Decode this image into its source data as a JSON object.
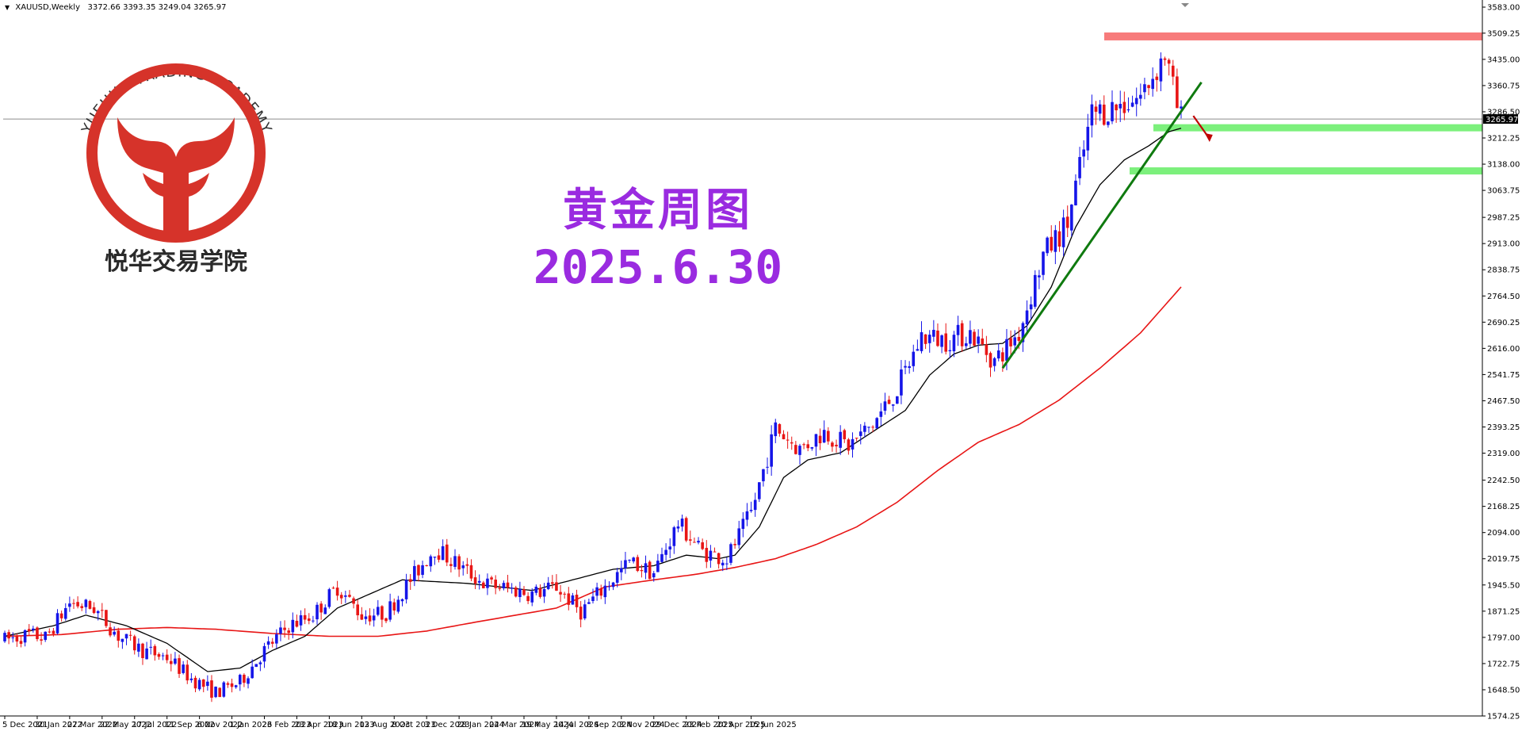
{
  "header": {
    "symbol": "XAUUSD,Weekly",
    "ohlc": "3372.66 3393.35 3249.04 3265.97"
  },
  "logo": {
    "arc_text": "YUEHUA TRADING ACADEMY",
    "cn_text": "悦华交易学院",
    "color": "#d6332a"
  },
  "overlay": {
    "title": "黄金周图",
    "date": "2025.6.30",
    "color": "#9a2be0"
  },
  "chart_data": {
    "type": "candlestick",
    "title": "",
    "xlabel": "",
    "ylabel": "",
    "ylim": [
      1574.25,
      3583.0
    ],
    "grid": false,
    "current_price_label": "3265.97",
    "current_price": 3265.97,
    "y_ticks": [
      "3583.00",
      "3509.25",
      "3435.00",
      "3360.75",
      "3286.50",
      "3212.25",
      "3138.00",
      "3063.75",
      "2987.25",
      "2913.00",
      "2838.75",
      "2764.50",
      "2690.25",
      "2616.00",
      "2541.75",
      "2467.50",
      "2393.25",
      "2319.00",
      "2242.50",
      "2168.25",
      "2094.00",
      "2019.75",
      "1945.50",
      "1871.25",
      "1797.00",
      "1722.75",
      "1648.50",
      "1574.25"
    ],
    "x_ticks": [
      "5 Dec 2021",
      "30 Jan 2022",
      "27 Mar 2022",
      "22 May 2022",
      "17 Jul 2022",
      "11 Sep 2022",
      "6 Nov 2022",
      "1 Jan 2023",
      "26 Feb 2023",
      "23 Apr 2023",
      "18 Jun 2023",
      "13 Aug 2023",
      "8 Oct 2023",
      "3 Dec 2023",
      "28 Jan 2024",
      "24 Mar 2024",
      "19 May 2024",
      "14 Jul 2024",
      "8 Sep 2024",
      "3 Nov 2024",
      "29 Dec 2024",
      "23 Feb 2025",
      "20 Apr 2025",
      "15 Jun 2025"
    ],
    "close_anchors": [
      [
        0,
        1790
      ],
      [
        6,
        1805
      ],
      [
        10,
        1795
      ],
      [
        16,
        1895
      ],
      [
        22,
        1880
      ],
      [
        28,
        1800
      ],
      [
        34,
        1760
      ],
      [
        40,
        1740
      ],
      [
        46,
        1680
      ],
      [
        52,
        1640
      ],
      [
        58,
        1670
      ],
      [
        64,
        1760
      ],
      [
        70,
        1830
      ],
      [
        76,
        1860
      ],
      [
        82,
        1940
      ],
      [
        88,
        1860
      ],
      [
        94,
        1865
      ],
      [
        100,
        1960
      ],
      [
        106,
        2050
      ],
      [
        112,
        2000
      ],
      [
        118,
        1950
      ],
      [
        124,
        1935
      ],
      [
        130,
        1920
      ],
      [
        136,
        1940
      ],
      [
        142,
        1870
      ],
      [
        148,
        1940
      ],
      [
        154,
        2010
      ],
      [
        160,
        1980
      ],
      [
        166,
        2120
      ],
      [
        172,
        2040
      ],
      [
        178,
        2020
      ],
      [
        184,
        2150
      ],
      [
        190,
        2390
      ],
      [
        196,
        2330
      ],
      [
        202,
        2380
      ],
      [
        208,
        2340
      ],
      [
        214,
        2400
      ],
      [
        220,
        2500
      ],
      [
        226,
        2650
      ],
      [
        232,
        2640
      ],
      [
        238,
        2660
      ],
      [
        244,
        2580
      ],
      [
        250,
        2660
      ],
      [
        256,
        2880
      ],
      [
        262,
        2970
      ],
      [
        268,
        3280
      ],
      [
        274,
        3300
      ],
      [
        280,
        3330
      ],
      [
        286,
        3450
      ],
      [
        289,
        3300
      ],
      [
        290,
        3266
      ]
    ],
    "black_ma_anchors": [
      [
        0,
        1800
      ],
      [
        12,
        1830
      ],
      [
        20,
        1860
      ],
      [
        30,
        1830
      ],
      [
        40,
        1780
      ],
      [
        50,
        1700
      ],
      [
        58,
        1710
      ],
      [
        66,
        1760
      ],
      [
        74,
        1800
      ],
      [
        82,
        1880
      ],
      [
        90,
        1920
      ],
      [
        98,
        1960
      ],
      [
        106,
        1955
      ],
      [
        114,
        1950
      ],
      [
        122,
        1940
      ],
      [
        130,
        1930
      ],
      [
        140,
        1960
      ],
      [
        150,
        1990
      ],
      [
        160,
        2000
      ],
      [
        168,
        2030
      ],
      [
        176,
        2020
      ],
      [
        180,
        2030
      ],
      [
        186,
        2110
      ],
      [
        192,
        2250
      ],
      [
        198,
        2300
      ],
      [
        206,
        2320
      ],
      [
        214,
        2380
      ],
      [
        222,
        2440
      ],
      [
        228,
        2540
      ],
      [
        234,
        2600
      ],
      [
        240,
        2625
      ],
      [
        246,
        2630
      ],
      [
        252,
        2680
      ],
      [
        258,
        2790
      ],
      [
        264,
        2960
      ],
      [
        270,
        3080
      ],
      [
        276,
        3150
      ],
      [
        282,
        3190
      ],
      [
        287,
        3230
      ],
      [
        290,
        3240
      ]
    ],
    "red_ma_anchors": [
      [
        0,
        1800
      ],
      [
        14,
        1805
      ],
      [
        28,
        1820
      ],
      [
        40,
        1825
      ],
      [
        52,
        1820
      ],
      [
        66,
        1808
      ],
      [
        80,
        1800
      ],
      [
        92,
        1800
      ],
      [
        104,
        1815
      ],
      [
        116,
        1840
      ],
      [
        126,
        1860
      ],
      [
        136,
        1880
      ],
      [
        148,
        1940
      ],
      [
        160,
        1960
      ],
      [
        170,
        1975
      ],
      [
        180,
        1995
      ],
      [
        190,
        2020
      ],
      [
        200,
        2060
      ],
      [
        210,
        2110
      ],
      [
        220,
        2180
      ],
      [
        230,
        2270
      ],
      [
        240,
        2350
      ],
      [
        250,
        2400
      ],
      [
        260,
        2470
      ],
      [
        270,
        2560
      ],
      [
        280,
        2660
      ],
      [
        290,
        2790
      ]
    ],
    "resistance_zone": 3500,
    "support_zones": [
      3240,
      3120
    ],
    "trendline": {
      "from": [
        246,
        2560
      ],
      "to": [
        295,
        3370
      ]
    },
    "arrow": {
      "from": [
        293,
        3275
      ],
      "to": [
        297,
        3210
      ]
    }
  }
}
